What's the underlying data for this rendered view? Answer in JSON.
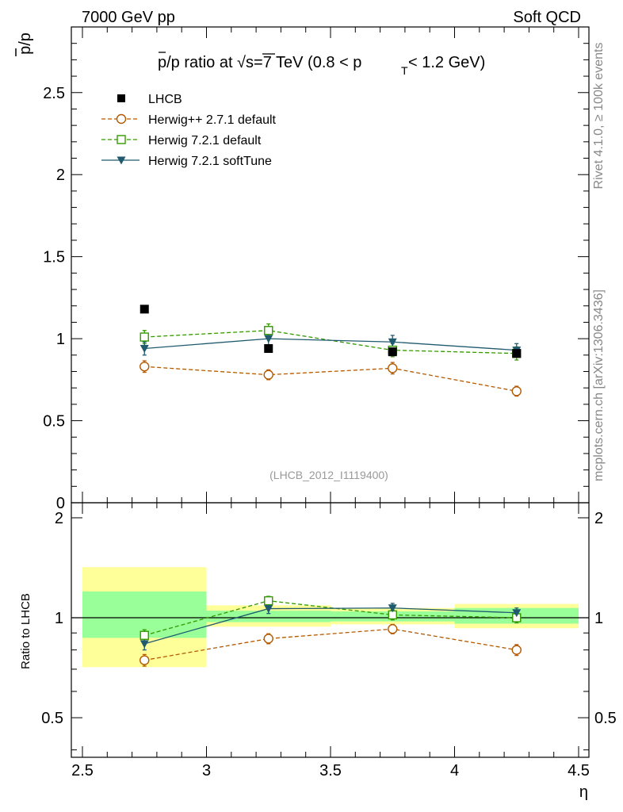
{
  "header": {
    "left": "7000 GeV pp",
    "right": "Soft QCD"
  },
  "side_labels": {
    "rivet": "Rivet 4.1.0, ≥ 100k events",
    "mcplots": "mcplots.cern.ch [arXiv:1306.3436]"
  },
  "chart_data": [
    {
      "type": "scatter",
      "title_parts": {
        "pre": "p/p ratio at √s=7 TeV (0.8 < p",
        "sub": "T",
        "post": " < 1.2 GeV)"
      },
      "ylabel": "p/p",
      "watermark": "(LHCB_2012_I1119400)",
      "xlim": [
        2.5,
        4.5
      ],
      "ylim": [
        0,
        2.9
      ],
      "yticks": [
        {
          "v": 0.5,
          "label": "0.5"
        },
        {
          "v": 1,
          "label": "1"
        },
        {
          "v": 1.5,
          "label": "1.5"
        },
        {
          "v": 2,
          "label": "2"
        },
        {
          "v": 2.5,
          "label": "2.5"
        }
      ],
      "zero_label": "0",
      "x": [
        2.75,
        3.25,
        3.75,
        4.25
      ],
      "series": [
        {
          "name": "LHCB",
          "key": "lhcb",
          "color": "#000000",
          "marker": "square-filled",
          "line": "none",
          "values": [
            1.18,
            0.94,
            0.92,
            0.91
          ],
          "errors": [
            0.0,
            0.0,
            0.0,
            0.0
          ]
        },
        {
          "name": "Herwig++ 2.7.1 default",
          "key": "hpp",
          "color": "#b35900",
          "marker": "circle-open",
          "line": "dashed",
          "values": [
            0.83,
            0.78,
            0.82,
            0.68
          ],
          "errors": [
            0.035,
            0.03,
            0.035,
            0.03
          ]
        },
        {
          "name": "Herwig 7.2.1 default",
          "key": "h7def",
          "color": "#339900",
          "marker": "square-open",
          "line": "dashed",
          "values": [
            1.01,
            1.05,
            0.93,
            0.91
          ],
          "errors": [
            0.04,
            0.04,
            0.04,
            0.04
          ]
        },
        {
          "name": "Herwig 7.2.1 softTune",
          "key": "h7soft",
          "color": "#1f5a6e",
          "marker": "triangle-down-filled",
          "line": "solid",
          "values": [
            0.94,
            1.0,
            0.98,
            0.93
          ],
          "errors": [
            0.04,
            0.04,
            0.04,
            0.04
          ]
        }
      ]
    },
    {
      "type": "scatter",
      "ylabel": "Ratio to LHCB",
      "xlabel": "η",
      "xlim": [
        2.5,
        4.5
      ],
      "ylim": [
        0.38,
        2.22
      ],
      "log_y": true,
      "xticks": [
        {
          "v": 2.5,
          "label": "2.5"
        },
        {
          "v": 3,
          "label": "3"
        },
        {
          "v": 3.5,
          "label": "3.5"
        },
        {
          "v": 4,
          "label": "4"
        },
        {
          "v": 4.5,
          "label": "4.5"
        }
      ],
      "yticks": [
        {
          "v": 0.5,
          "label": "0.5"
        },
        {
          "v": 1,
          "label": "1"
        },
        {
          "v": 2,
          "label": "2"
        }
      ],
      "bands": [
        {
          "x0": 2.5,
          "x1": 3.0,
          "inner": [
            0.87,
            1.2
          ],
          "outer": [
            0.71,
            1.42
          ]
        },
        {
          "x0": 3.0,
          "x1": 3.5,
          "inner": [
            0.97,
            1.05
          ],
          "outer": [
            0.94,
            1.09
          ]
        },
        {
          "x0": 3.5,
          "x1": 4.0,
          "inner": [
            0.975,
            1.045
          ],
          "outer": [
            0.955,
            1.07
          ]
        },
        {
          "x0": 4.0,
          "x1": 4.5,
          "inner": [
            0.96,
            1.07
          ],
          "outer": [
            0.93,
            1.1
          ]
        }
      ],
      "x": [
        2.75,
        3.25,
        3.75,
        4.25
      ],
      "series": [
        {
          "name": "Herwig++ 2.7.1 default",
          "key": "hpp",
          "color": "#b35900",
          "marker": "circle-open",
          "line": "dashed",
          "values": [
            0.745,
            0.865,
            0.925,
            0.8
          ],
          "errors": [
            0.03,
            0.03,
            0.03,
            0.03
          ]
        },
        {
          "name": "Herwig 7.2.1 default",
          "key": "h7def",
          "color": "#339900",
          "marker": "square-open",
          "line": "dashed",
          "values": [
            0.885,
            1.125,
            1.02,
            1.0
          ],
          "errors": [
            0.035,
            0.035,
            0.035,
            0.035
          ]
        },
        {
          "name": "Herwig 7.2.1 softTune",
          "key": "h7soft",
          "color": "#1f5a6e",
          "marker": "triangle-down-filled",
          "line": "solid",
          "values": [
            0.835,
            1.065,
            1.07,
            1.035
          ],
          "errors": [
            0.035,
            0.035,
            0.035,
            0.035
          ]
        }
      ]
    }
  ]
}
